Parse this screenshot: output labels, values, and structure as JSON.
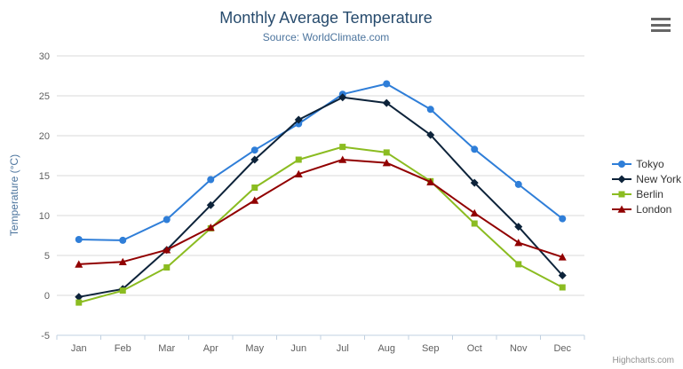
{
  "header": {
    "title": "Monthly Average Temperature",
    "subtitle": "Source: WorldClimate.com"
  },
  "credits": {
    "label": "Highcharts.com"
  },
  "menu_icon": "hamburger-icon",
  "chart_data": {
    "type": "line",
    "title": "Monthly Average Temperature",
    "subtitle": "Source: WorldClimate.com",
    "xlabel": "",
    "ylabel": "Temperature (°C)",
    "ylim": [
      -5,
      30
    ],
    "yticks": [
      -5,
      0,
      5,
      10,
      15,
      20,
      25,
      30
    ],
    "grid": true,
    "legend_position": "right",
    "categories": [
      "Jan",
      "Feb",
      "Mar",
      "Apr",
      "May",
      "Jun",
      "Jul",
      "Aug",
      "Sep",
      "Oct",
      "Nov",
      "Dec"
    ],
    "series": [
      {
        "name": "Tokyo",
        "color": "#2f7ed8",
        "marker": "circle",
        "values": [
          7.0,
          6.9,
          9.5,
          14.5,
          18.2,
          21.5,
          25.2,
          26.5,
          23.3,
          18.3,
          13.9,
          9.6
        ]
      },
      {
        "name": "New York",
        "color": "#0d233a",
        "marker": "diamond",
        "values": [
          -0.2,
          0.8,
          5.7,
          11.3,
          17.0,
          22.0,
          24.8,
          24.1,
          20.1,
          14.1,
          8.6,
          2.5
        ]
      },
      {
        "name": "Berlin",
        "color": "#8bbc21",
        "marker": "square",
        "values": [
          -0.9,
          0.6,
          3.5,
          8.4,
          13.5,
          17.0,
          18.6,
          17.9,
          14.3,
          9.0,
          3.9,
          1.0
        ]
      },
      {
        "name": "London",
        "color": "#910000",
        "marker": "triangle",
        "values": [
          3.9,
          4.2,
          5.7,
          8.5,
          11.9,
          15.2,
          17.0,
          16.6,
          14.2,
          10.3,
          6.6,
          4.8
        ]
      }
    ],
    "colors": {
      "grid_line": "#d8d8d8",
      "axis_line": "#c0d0e0",
      "tick_label": "#606060",
      "title": "#274b6d",
      "subtitle": "#4d759e",
      "legend_label": "#333333",
      "credits": "#909090"
    }
  }
}
